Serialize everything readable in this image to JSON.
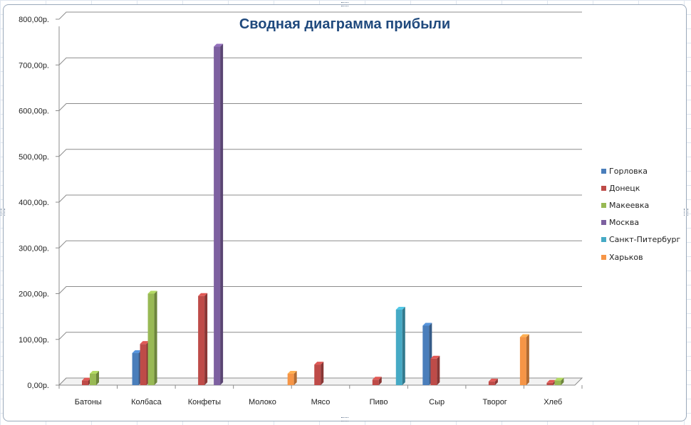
{
  "chart_data": {
    "type": "bar",
    "title": "Сводная диаграмма прибыли",
    "categories": [
      "Батоны",
      "Колбаса",
      "Конфеты",
      "Молоко",
      "Мясо",
      "Пиво",
      "Сыр",
      "Творог",
      "Хлеб"
    ],
    "y_ticks": [
      "0,00р.",
      "100,00р.",
      "200,00р.",
      "300,00р.",
      "400,00р.",
      "500,00р.",
      "600,00р.",
      "700,00р.",
      "800,00р."
    ],
    "ylim": [
      0,
      800
    ],
    "grid": true,
    "legend_position": "right",
    "series": [
      {
        "name": "Горловка",
        "color": "#4a7ebb",
        "values": [
          null,
          70,
          null,
          null,
          null,
          null,
          130,
          null,
          null
        ]
      },
      {
        "name": "Донецк",
        "color": "#be4b48",
        "values": [
          10,
          90,
          195,
          null,
          45,
          12,
          58,
          8,
          5
        ]
      },
      {
        "name": "Макеевка",
        "color": "#98b954",
        "values": [
          25,
          200,
          null,
          null,
          null,
          null,
          null,
          null,
          10
        ]
      },
      {
        "name": "Москва",
        "color": "#7d60a0",
        "values": [
          null,
          null,
          740,
          null,
          null,
          null,
          null,
          null,
          null
        ]
      },
      {
        "name": "Санкт-Питербург",
        "color": "#46aac5",
        "values": [
          null,
          null,
          null,
          null,
          null,
          165,
          null,
          null,
          null
        ]
      },
      {
        "name": "Харьков",
        "color": "#f69546",
        "values": [
          null,
          null,
          null,
          25,
          null,
          null,
          null,
          105,
          null
        ]
      }
    ]
  }
}
